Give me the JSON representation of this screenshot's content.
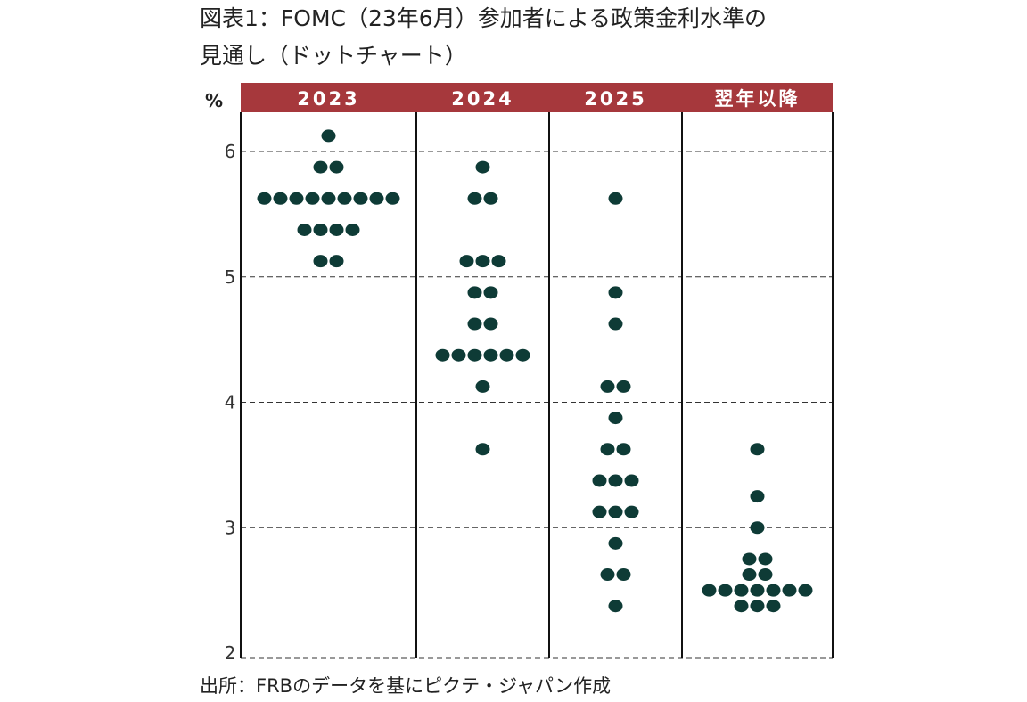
{
  "title_line1": "図表1：FOMC（23年6月）参加者による政策金利水準の",
  "title_line2": "見通し（ドットチャート）",
  "source": "出所：FRBのデータを基にピクテ・ジャパン作成",
  "colors": {
    "header": "#a6383c",
    "dot": "#0e3b36",
    "grid": "#333333"
  },
  "chart_data": {
    "type": "scatter",
    "unit_label": "%",
    "ylim": [
      2,
      6.4
    ],
    "y_ticks": [
      2,
      3,
      4,
      5,
      6
    ],
    "categories": [
      "2023",
      "2024",
      "2025",
      "翌年以降"
    ],
    "dots": [
      {
        "category": "2023",
        "points": [
          {
            "rate": 6.125,
            "count": 1
          },
          {
            "rate": 5.875,
            "count": 2
          },
          {
            "rate": 5.625,
            "count": 9
          },
          {
            "rate": 5.375,
            "count": 4
          },
          {
            "rate": 5.125,
            "count": 2
          }
        ]
      },
      {
        "category": "2024",
        "points": [
          {
            "rate": 5.875,
            "count": 1
          },
          {
            "rate": 5.625,
            "count": 2
          },
          {
            "rate": 5.125,
            "count": 3
          },
          {
            "rate": 4.875,
            "count": 2
          },
          {
            "rate": 4.625,
            "count": 2
          },
          {
            "rate": 4.375,
            "count": 6
          },
          {
            "rate": 4.125,
            "count": 1
          },
          {
            "rate": 3.625,
            "count": 1
          }
        ]
      },
      {
        "category": "2025",
        "points": [
          {
            "rate": 5.625,
            "count": 1
          },
          {
            "rate": 4.875,
            "count": 1
          },
          {
            "rate": 4.625,
            "count": 1
          },
          {
            "rate": 4.125,
            "count": 2
          },
          {
            "rate": 3.875,
            "count": 1
          },
          {
            "rate": 3.625,
            "count": 2
          },
          {
            "rate": 3.375,
            "count": 3
          },
          {
            "rate": 3.125,
            "count": 3
          },
          {
            "rate": 2.875,
            "count": 1
          },
          {
            "rate": 2.625,
            "count": 2
          },
          {
            "rate": 2.375,
            "count": 1
          }
        ]
      },
      {
        "category": "翌年以降",
        "points": [
          {
            "rate": 3.625,
            "count": 1
          },
          {
            "rate": 3.25,
            "count": 1
          },
          {
            "rate": 3.0,
            "count": 1
          },
          {
            "rate": 2.75,
            "count": 2
          },
          {
            "rate": 2.625,
            "count": 2
          },
          {
            "rate": 2.5,
            "count": 7
          },
          {
            "rate": 2.375,
            "count": 3
          }
        ]
      }
    ]
  }
}
